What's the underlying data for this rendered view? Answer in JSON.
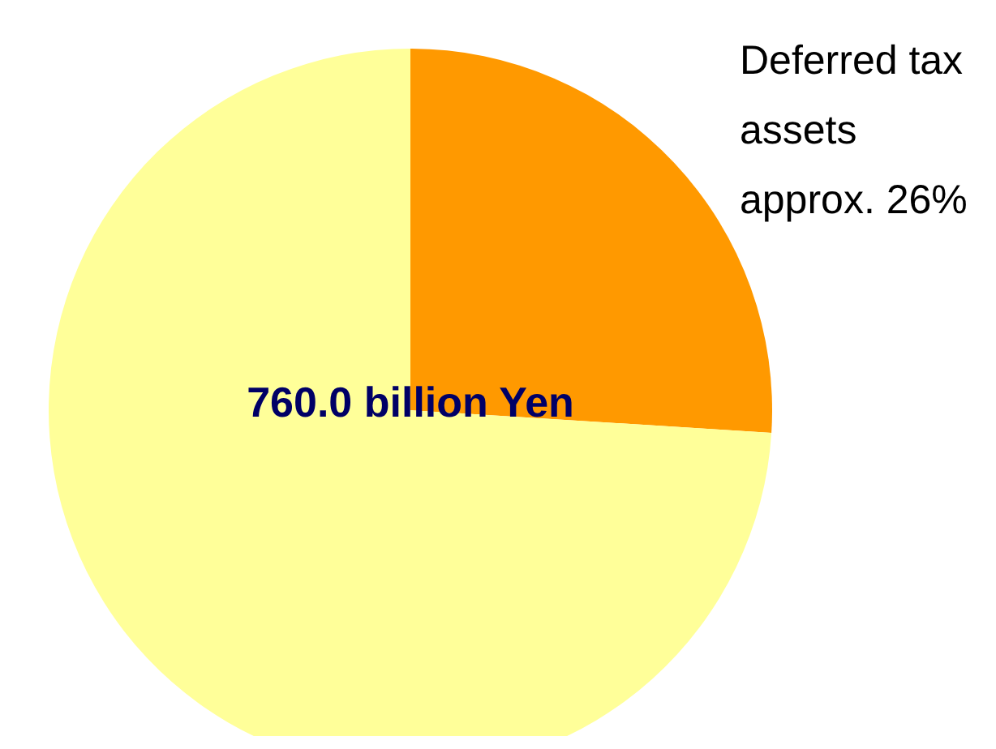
{
  "chart_data": {
    "type": "pie",
    "categories": [
      "Deferred tax assets",
      null
    ],
    "values": [
      26,
      74
    ],
    "colors": [
      "#ff9900",
      "#ffff99"
    ],
    "value_labels": [
      "approx. 26%",
      null
    ],
    "annotations": [
      "760.0 billion Yen"
    ],
    "legend": false
  }
}
